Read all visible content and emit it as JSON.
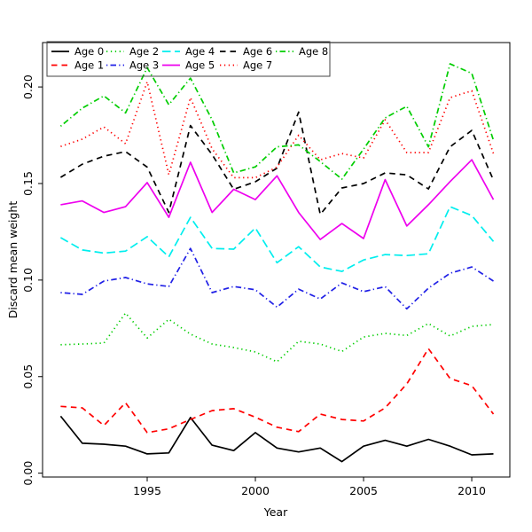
{
  "figure": {
    "background": "#ffffff",
    "box_color": "#000000"
  },
  "axes": {
    "x": {
      "label": "Year",
      "ticks": [
        1995,
        2000,
        2005,
        2010
      ],
      "tick_labels": [
        "1995",
        "2000",
        "2005",
        "2010"
      ]
    },
    "y": {
      "label": "Discard mean weight",
      "ticks": [
        0.0,
        0.05,
        0.1,
        0.15,
        0.2
      ],
      "tick_labels": [
        "0.00",
        "0.05",
        "0.10",
        "0.15",
        "0.20"
      ]
    }
  },
  "chart_data": {
    "type": "line",
    "title": "",
    "xlabel": "Year",
    "ylabel": "Discard mean weight",
    "grid": false,
    "legend_position": "top-left",
    "xlim": [
      1990.164,
      2011.76
    ],
    "ylim": [
      -0.002,
      0.223
    ],
    "x": [
      1991,
      1992,
      1993,
      1994,
      1995,
      1996,
      1997,
      1998,
      1999,
      2000,
      2001,
      2002,
      2003,
      2004,
      2005,
      2006,
      2007,
      2008,
      2009,
      2010,
      2011
    ],
    "series": [
      {
        "name": "Age 0",
        "color": "#000000",
        "style": "solid",
        "values": [
          0.0295,
          0.0155,
          0.015,
          0.014,
          0.01,
          0.0105,
          0.0288,
          0.0145,
          0.0117,
          0.021,
          0.013,
          0.011,
          0.013,
          0.006,
          0.014,
          0.017,
          0.014,
          0.0175,
          0.014,
          0.0095,
          0.01
        ]
      },
      {
        "name": "Age 1",
        "color": "#ff0000",
        "style": "dashed",
        "values": [
          0.0346,
          0.0338,
          0.0247,
          0.0365,
          0.021,
          0.023,
          0.0278,
          0.0324,
          0.0334,
          0.029,
          0.0238,
          0.0215,
          0.0306,
          0.0278,
          0.027,
          0.0338,
          0.0462,
          0.0645,
          0.049,
          0.0453,
          0.0306
        ]
      },
      {
        "name": "Age 2",
        "color": "#00cd00",
        "style": "dotted",
        "values": [
          0.0665,
          0.0669,
          0.0674,
          0.0829,
          0.07,
          0.0797,
          0.072,
          0.0669,
          0.0651,
          0.0628,
          0.0577,
          0.0683,
          0.0669,
          0.063,
          0.0705,
          0.0724,
          0.0713,
          0.0775,
          0.071,
          0.076,
          0.077
        ]
      },
      {
        "name": "Age 3",
        "color": "#2020e6",
        "style": "dashdot",
        "values": [
          0.0935,
          0.0926,
          0.0995,
          0.1013,
          0.098,
          0.0967,
          0.1164,
          0.0935,
          0.0967,
          0.095,
          0.086,
          0.0953,
          0.0902,
          0.0985,
          0.094,
          0.0966,
          0.0851,
          0.0958,
          0.1035,
          0.1068,
          0.0995
        ]
      },
      {
        "name": "Age 4",
        "color": "#00eeee",
        "style": "longdash",
        "values": [
          0.122,
          0.1156,
          0.114,
          0.115,
          0.1225,
          0.112,
          0.1325,
          0.1164,
          0.116,
          0.127,
          0.109,
          0.1173,
          0.1068,
          0.1045,
          0.1104,
          0.1132,
          0.1127,
          0.1136,
          0.138,
          0.1334,
          0.12
        ]
      },
      {
        "name": "Age 5",
        "color": "#ee00ee",
        "style": "solid",
        "values": [
          0.139,
          0.141,
          0.135,
          0.138,
          0.1505,
          0.1325,
          0.161,
          0.135,
          0.147,
          0.1417,
          0.154,
          0.135,
          0.121,
          0.1293,
          0.1215,
          0.152,
          0.128,
          0.139,
          0.151,
          0.1623,
          0.1417
        ]
      },
      {
        "name": "Age 6",
        "color": "#000000",
        "style": "dashed",
        "values": [
          0.1532,
          0.16,
          0.1642,
          0.1665,
          0.1585,
          0.135,
          0.18,
          0.165,
          0.147,
          0.1509,
          0.158,
          0.187,
          0.134,
          0.1477,
          0.15,
          0.1555,
          0.1545,
          0.1472,
          0.169,
          0.1775,
          0.1518
        ]
      },
      {
        "name": "Age 7",
        "color": "#ff0000",
        "style": "dotted",
        "values": [
          0.1692,
          0.173,
          0.1793,
          0.1706,
          0.2027,
          0.1546,
          0.1945,
          0.168,
          0.153,
          0.153,
          0.1585,
          0.175,
          0.1623,
          0.1655,
          0.1632,
          0.183,
          0.166,
          0.166,
          0.1945,
          0.198,
          0.1655
        ]
      },
      {
        "name": "Age 8",
        "color": "#00cd00",
        "style": "dashdot",
        "values": [
          0.1797,
          0.189,
          0.1954,
          0.1866,
          0.21,
          0.1908,
          0.2046,
          0.183,
          0.1555,
          0.1586,
          0.169,
          0.17,
          0.1614,
          0.1523,
          0.1678,
          0.184,
          0.19,
          0.169,
          0.212,
          0.207,
          0.1724
        ]
      }
    ],
    "legend_rows": [
      [
        "Age 0",
        "Age 2",
        "Age 4",
        "Age 6",
        "Age 8"
      ],
      [
        "Age 1",
        "Age 3",
        "Age 5",
        "Age 7"
      ]
    ]
  }
}
